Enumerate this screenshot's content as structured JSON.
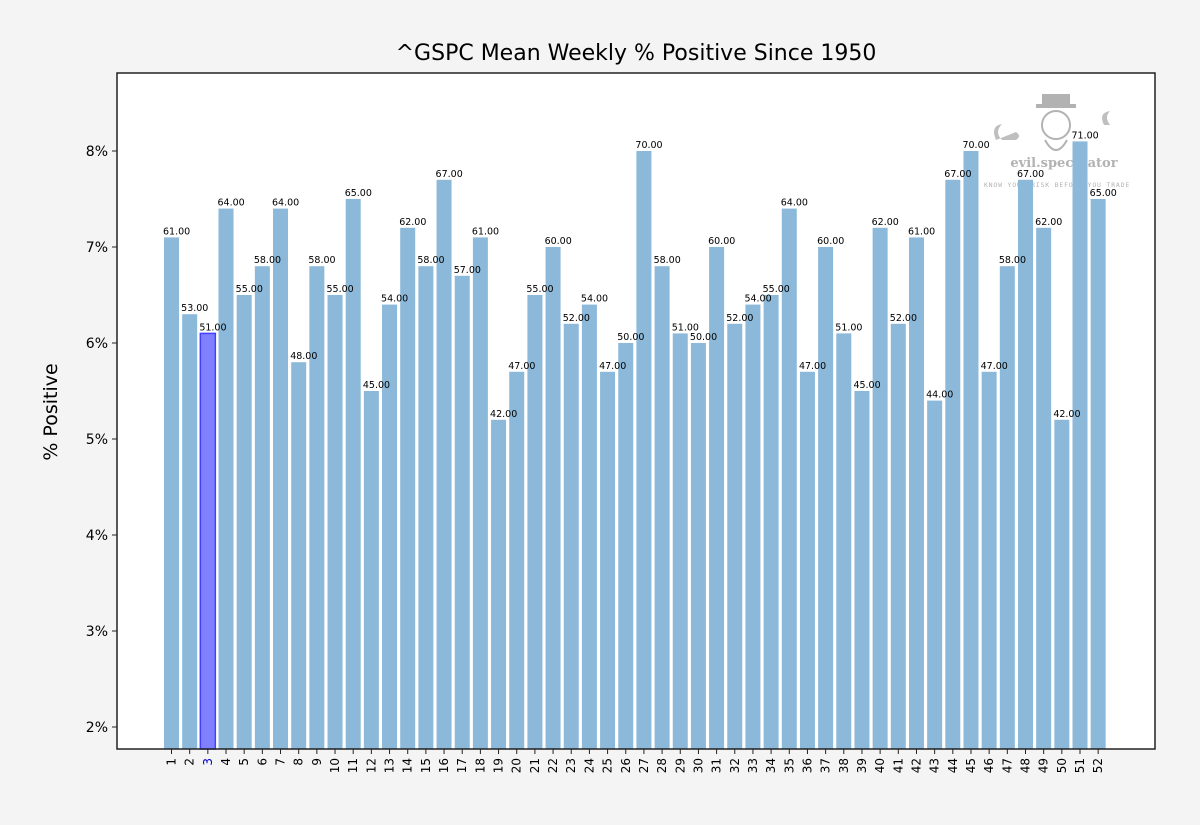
{
  "chart_data": {
    "type": "bar",
    "title": "^GSPC Mean Weekly % Positive Since 1950",
    "xlabel": "",
    "ylabel": "% Positive",
    "ylim": [
      1.77,
      8.8
    ],
    "yticks": [
      2,
      3,
      4,
      5,
      6,
      7,
      8
    ],
    "ytick_labels": [
      "2%",
      "3%",
      "4%",
      "5%",
      "6%",
      "7%",
      "8%"
    ],
    "grid": false,
    "highlight_category": "3",
    "categories": [
      "1",
      "2",
      "3",
      "4",
      "5",
      "6",
      "7",
      "8",
      "9",
      "10",
      "11",
      "12",
      "13",
      "14",
      "15",
      "16",
      "17",
      "18",
      "19",
      "20",
      "21",
      "22",
      "23",
      "24",
      "25",
      "26",
      "27",
      "28",
      "29",
      "30",
      "31",
      "32",
      "33",
      "34",
      "35",
      "36",
      "37",
      "38",
      "39",
      "40",
      "41",
      "42",
      "43",
      "44",
      "45",
      "46",
      "47",
      "48",
      "49",
      "50",
      "51",
      "52"
    ],
    "values": [
      7.1,
      6.3,
      6.1,
      7.4,
      6.5,
      6.8,
      7.4,
      5.8,
      6.8,
      6.5,
      7.5,
      5.5,
      6.4,
      7.2,
      6.8,
      7.7,
      6.7,
      7.1,
      5.2,
      5.7,
      6.5,
      7.0,
      6.2,
      6.4,
      5.7,
      6.0,
      8.0,
      6.8,
      6.1,
      6.0,
      7.0,
      6.2,
      6.4,
      6.5,
      7.4,
      5.7,
      7.0,
      6.1,
      5.5,
      7.2,
      6.2,
      7.1,
      5.4,
      7.7,
      8.0,
      5.7,
      6.8,
      7.7,
      7.2,
      5.2,
      8.1,
      7.5
    ],
    "data_labels": [
      "61.00",
      "53.00",
      "51.00",
      "64.00",
      "55.00",
      "58.00",
      "64.00",
      "48.00",
      "58.00",
      "55.00",
      "65.00",
      "45.00",
      "54.00",
      "62.00",
      "58.00",
      "67.00",
      "57.00",
      "61.00",
      "42.00",
      "47.00",
      "55.00",
      "60.00",
      "52.00",
      "54.00",
      "47.00",
      "50.00",
      "70.00",
      "58.00",
      "51.00",
      "50.00",
      "60.00",
      "52.00",
      "54.00",
      "55.00",
      "64.00",
      "47.00",
      "60.00",
      "51.00",
      "45.00",
      "62.00",
      "52.00",
      "61.00",
      "44.00",
      "67.00",
      "70.00",
      "47.00",
      "58.00",
      "67.00",
      "62.00",
      "42.00",
      "71.00",
      "65.00"
    ],
    "colors": {
      "bar": "#8cb8d9",
      "highlight_fill": "#8080ff",
      "highlight_edge": "#4040ff",
      "highlight_tick": "#0000cc"
    },
    "watermark": {
      "brand": "evil.speculator",
      "tagline": "KNOW YOUR RISK BEFORE YOU TRADE"
    }
  }
}
